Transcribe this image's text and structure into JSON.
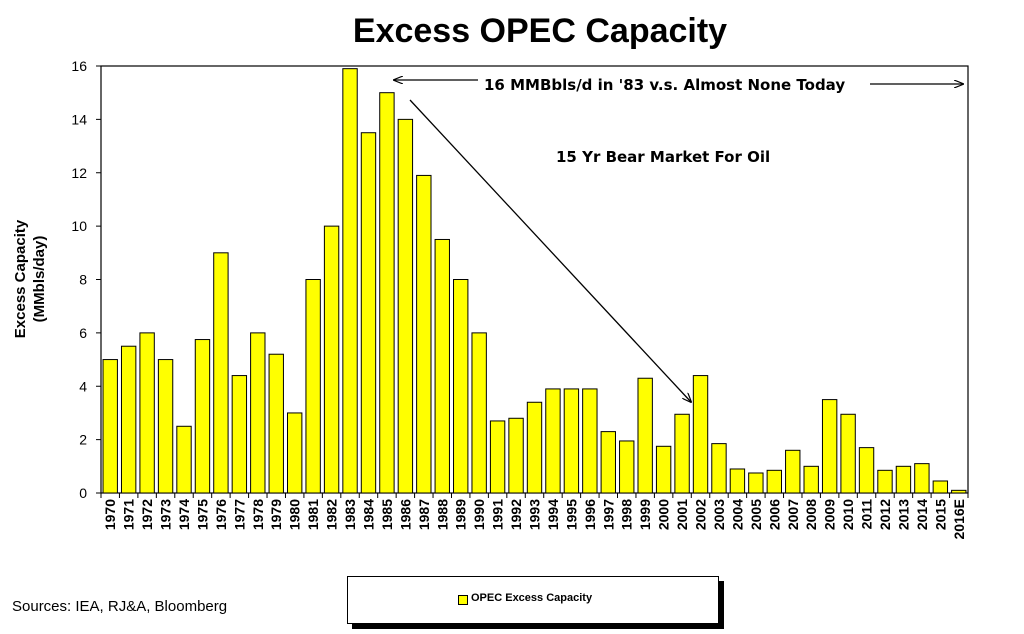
{
  "chart_data": {
    "type": "bar",
    "title": "Excess OPEC Capacity",
    "ylabel_line1": "Excess Capacity",
    "ylabel_line2": "(MMbls/day)",
    "ylim": [
      0,
      16
    ],
    "yticks": [
      0,
      2,
      4,
      6,
      8,
      10,
      12,
      14,
      16
    ],
    "grid": false,
    "legend": "bottom-center",
    "categories": [
      "1970",
      "1971",
      "1972",
      "1973",
      "1974",
      "1975",
      "1976",
      "1977",
      "1978",
      "1979",
      "1980",
      "1981",
      "1982",
      "1983",
      "1984",
      "1985",
      "1986",
      "1987",
      "1988",
      "1989",
      "1990",
      "1991",
      "1992",
      "1993",
      "1994",
      "1995",
      "1996",
      "1997",
      "1998",
      "1999",
      "2000",
      "2001",
      "2002",
      "2003",
      "2004",
      "2005",
      "2006",
      "2007",
      "2008",
      "2009",
      "2010",
      "2011",
      "2012",
      "2013",
      "2014",
      "2015",
      "2016E"
    ],
    "series": [
      {
        "name": "OPEC Excess Capacity",
        "color": "#ffff00",
        "values": [
          5.0,
          5.5,
          6.0,
          5.0,
          2.5,
          5.75,
          9.0,
          4.4,
          6.0,
          5.2,
          3.0,
          8.0,
          10.0,
          15.9,
          13.5,
          15.0,
          14.0,
          11.9,
          9.5,
          8.0,
          6.0,
          2.7,
          2.8,
          3.4,
          3.9,
          3.9,
          3.9,
          2.3,
          1.95,
          4.3,
          1.75,
          2.95,
          4.4,
          1.85,
          0.9,
          0.75,
          0.85,
          1.6,
          1.0,
          3.5,
          2.95,
          1.7,
          0.85,
          1.0,
          1.1,
          0.45,
          0.1
        ]
      }
    ],
    "annotations": [
      {
        "text": "16 MMBbls/d in '83 v.s. Almost None Today"
      },
      {
        "text": "15 Yr Bear Market For Oil"
      }
    ]
  },
  "sources": "Sources: IEA, RJ&A, Bloomberg",
  "legend": {
    "label": "OPEC Excess Capacity"
  }
}
